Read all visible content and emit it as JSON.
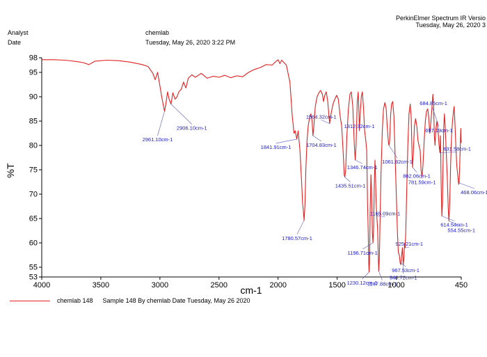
{
  "header": {
    "software_line1": "PerkinElmer Spectrum IR Versio",
    "software_line2": "Tuesday, May 26, 2020 3",
    "analyst_label": "Analyst",
    "analyst_value": "chemlab",
    "date_label": "Date",
    "date_value": "Tuesday, May 26, 2020 3:22 PM"
  },
  "legend": {
    "series_name": "chemlab 148",
    "description": "Sample 148 By chemlab Date Tuesday, May 26 2020"
  },
  "colors": {
    "trace": "#e02020",
    "annotation": "#1a1acc",
    "axis": "#000000"
  },
  "chart_data": {
    "type": "line",
    "title": "",
    "xlabel": "cm-1",
    "ylabel": "%T",
    "xlim": [
      4000,
      450
    ],
    "ylim": [
      53,
      98
    ],
    "x_reversed": true,
    "grid": false,
    "legend_position": "bottom",
    "x_ticks": [
      4000,
      3500,
      3000,
      2500,
      2000,
      1500,
      1000,
      450
    ],
    "x_tick_labels": [
      "4000",
      "3500",
      "3000",
      "2500",
      "2000",
      "1500",
      "1000",
      "450"
    ],
    "y_ticks": [
      53,
      55,
      60,
      65,
      70,
      75,
      80,
      85,
      90,
      95,
      98
    ],
    "y_tick_labels": [
      "53",
      "55",
      "60",
      "65",
      "70",
      "75",
      "80",
      "85",
      "90",
      "95",
      "98"
    ],
    "series": [
      {
        "name": "chemlab 148",
        "points": [
          [
            4000,
            97.6
          ],
          [
            3900,
            97.6
          ],
          [
            3800,
            97.5
          ],
          [
            3700,
            97.2
          ],
          [
            3650,
            97.0
          ],
          [
            3600,
            96.6
          ],
          [
            3550,
            97.3
          ],
          [
            3450,
            97.5
          ],
          [
            3350,
            97.4
          ],
          [
            3250,
            97.1
          ],
          [
            3150,
            96.6
          ],
          [
            3100,
            96.2
          ],
          [
            3060,
            94.8
          ],
          [
            3040,
            93.5
          ],
          [
            3020,
            95.0
          ],
          [
            3000,
            92.2
          ],
          [
            2985,
            90.0
          ],
          [
            2961,
            87.0
          ],
          [
            2950,
            88.5
          ],
          [
            2935,
            91.0
          ],
          [
            2922,
            89.5
          ],
          [
            2906,
            88.5
          ],
          [
            2890,
            90.8
          ],
          [
            2872,
            89.5
          ],
          [
            2855,
            90.0
          ],
          [
            2840,
            91.0
          ],
          [
            2820,
            91.5
          ],
          [
            2800,
            93.0
          ],
          [
            2780,
            91.8
          ],
          [
            2760,
            93.8
          ],
          [
            2730,
            94.5
          ],
          [
            2700,
            94.0
          ],
          [
            2650,
            94.8
          ],
          [
            2600,
            93.8
          ],
          [
            2550,
            94.2
          ],
          [
            2500,
            94.0
          ],
          [
            2450,
            94.4
          ],
          [
            2400,
            93.9
          ],
          [
            2350,
            94.3
          ],
          [
            2300,
            94.1
          ],
          [
            2250,
            95.0
          ],
          [
            2200,
            95.6
          ],
          [
            2150,
            96.0
          ],
          [
            2100,
            96.6
          ],
          [
            2050,
            96.5
          ],
          [
            2020,
            97.2
          ],
          [
            2000,
            97.6
          ],
          [
            1985,
            96.8
          ],
          [
            1970,
            97.5
          ],
          [
            1950,
            97.0
          ],
          [
            1930,
            96.5
          ],
          [
            1900,
            93.0
          ],
          [
            1880,
            86.0
          ],
          [
            1865,
            82.5
          ],
          [
            1855,
            83.0
          ],
          [
            1842,
            81.3
          ],
          [
            1830,
            83.0
          ],
          [
            1815,
            79.0
          ],
          [
            1800,
            72.0
          ],
          [
            1792,
            68.0
          ],
          [
            1786,
            66.5
          ],
          [
            1780,
            64.6
          ],
          [
            1772,
            68.0
          ],
          [
            1765,
            75.0
          ],
          [
            1755,
            81.0
          ],
          [
            1745,
            84.0
          ],
          [
            1735,
            85.5
          ],
          [
            1722,
            86.5
          ],
          [
            1712,
            85.0
          ],
          [
            1705,
            82.0
          ],
          [
            1697,
            84.0
          ],
          [
            1685,
            88.0
          ],
          [
            1670,
            90.0
          ],
          [
            1655,
            90.8
          ],
          [
            1640,
            91.3
          ],
          [
            1625,
            90.5
          ],
          [
            1615,
            89.0
          ],
          [
            1605,
            90.3
          ],
          [
            1592,
            91.0
          ],
          [
            1580,
            89.0
          ],
          [
            1564,
            84.5
          ],
          [
            1548,
            87.0
          ],
          [
            1535,
            88.5
          ],
          [
            1520,
            89.5
          ],
          [
            1505,
            90.3
          ],
          [
            1490,
            89.5
          ],
          [
            1475,
            86.0
          ],
          [
            1462,
            84.0
          ],
          [
            1450,
            79.0
          ],
          [
            1440,
            74.0
          ],
          [
            1435,
            73.5
          ],
          [
            1428,
            75.0
          ],
          [
            1418,
            82.0
          ],
          [
            1405,
            87.5
          ],
          [
            1392,
            90.5
          ],
          [
            1380,
            91.0
          ],
          [
            1368,
            88.0
          ],
          [
            1355,
            80.0
          ],
          [
            1347,
            77.0
          ],
          [
            1340,
            80.0
          ],
          [
            1330,
            89.0
          ],
          [
            1322,
            91.0
          ],
          [
            1316,
            87.0
          ],
          [
            1312,
            83.0
          ],
          [
            1306,
            86.0
          ],
          [
            1296,
            90.0
          ],
          [
            1287,
            91.0
          ],
          [
            1278,
            88.0
          ],
          [
            1268,
            83.0
          ],
          [
            1258,
            81.0
          ],
          [
            1250,
            79.0
          ],
          [
            1243,
            68.0
          ],
          [
            1237,
            62.0
          ],
          [
            1233,
            56.0
          ],
          [
            1230,
            54.0
          ],
          [
            1226,
            56.0
          ],
          [
            1221,
            66.0
          ],
          [
            1214,
            74.0
          ],
          [
            1208,
            70.0
          ],
          [
            1202,
            62.0
          ],
          [
            1197,
            60.0
          ],
          [
            1191,
            63.0
          ],
          [
            1186,
            72.0
          ],
          [
            1180,
            77.0
          ],
          [
            1176,
            74.0
          ],
          [
            1170,
            68.0
          ],
          [
            1165,
            65.5
          ],
          [
            1158,
            63.0
          ],
          [
            1152,
            57.0
          ],
          [
            1148,
            54.2
          ],
          [
            1143,
            57.0
          ],
          [
            1136,
            66.0
          ],
          [
            1128,
            75.0
          ],
          [
            1118,
            83.0
          ],
          [
            1108,
            87.5
          ],
          [
            1096,
            88.8
          ],
          [
            1085,
            87.5
          ],
          [
            1074,
            83.0
          ],
          [
            1066,
            80.5
          ],
          [
            1061,
            80.0
          ],
          [
            1056,
            81.0
          ],
          [
            1048,
            86.0
          ],
          [
            1040,
            88.5
          ],
          [
            1030,
            89.0
          ],
          [
            1020,
            86.0
          ],
          [
            1010,
            78.0
          ],
          [
            1000,
            70.0
          ],
          [
            990,
            62.0
          ],
          [
            982,
            58.0
          ],
          [
            974,
            57.5
          ],
          [
            968,
            56.0
          ],
          [
            962,
            55.5
          ],
          [
            956,
            57.0
          ],
          [
            948,
            59.0
          ],
          [
            941,
            55.5
          ],
          [
            935,
            57.0
          ],
          [
            929,
            60.0
          ],
          [
            925,
            59.0
          ],
          [
            920,
            62.0
          ],
          [
            912,
            70.0
          ],
          [
            902,
            80.0
          ],
          [
            892,
            86.5
          ],
          [
            882,
            88.5
          ],
          [
            874,
            86.0
          ],
          [
            866,
            78.0
          ],
          [
            862,
            75.5
          ],
          [
            856,
            78.0
          ],
          [
            846,
            84.0
          ],
          [
            836,
            85.5
          ],
          [
            826,
            84.0
          ],
          [
            816,
            81.0
          ],
          [
            808,
            80.0
          ],
          [
            798,
            79.0
          ],
          [
            790,
            75.0
          ],
          [
            782,
            73.5
          ],
          [
            774,
            76.0
          ],
          [
            764,
            81.0
          ],
          [
            754,
            85.0
          ],
          [
            744,
            87.0
          ],
          [
            734,
            87.5
          ],
          [
            726,
            86.0
          ],
          [
            716,
            82.5
          ],
          [
            706,
            85.0
          ],
          [
            697,
            88.0
          ],
          [
            690,
            90.5
          ],
          [
            684,
            88.0
          ],
          [
            678,
            82.0
          ],
          [
            672,
            80.0
          ],
          [
            666,
            83.0
          ],
          [
            656,
            85.0
          ],
          [
            646,
            83.0
          ],
          [
            638,
            80.0
          ],
          [
            631,
            78.5
          ],
          [
            626,
            82.0
          ],
          [
            620,
            72.0
          ],
          [
            614,
            65.5
          ],
          [
            609,
            68.0
          ],
          [
            604,
            76.0
          ],
          [
            598,
            84.0
          ],
          [
            592,
            86.5
          ],
          [
            584,
            83.0
          ],
          [
            576,
            78.0
          ],
          [
            568,
            73.0
          ],
          [
            560,
            67.0
          ],
          [
            554,
            64.5
          ],
          [
            548,
            68.0
          ],
          [
            540,
            76.0
          ],
          [
            532,
            82.0
          ],
          [
            524,
            85.0
          ],
          [
            516,
            87.0
          ],
          [
            510,
            88.0
          ],
          [
            504,
            85.0
          ],
          [
            496,
            80.0
          ],
          [
            488,
            76.0
          ],
          [
            480,
            74.0
          ],
          [
            472,
            72.0
          ],
          [
            468,
            72.3
          ],
          [
            463,
            76.0
          ],
          [
            458,
            80.0
          ],
          [
            454,
            83.5
          ],
          [
            452,
            81.0
          ],
          [
            450,
            80.5
          ]
        ]
      }
    ],
    "annotations": [
      {
        "label": "2961.10cm-1",
        "x": 2961.1,
        "y": 87.0
      },
      {
        "label": "2906.10cm-1",
        "x": 2906.1,
        "y": 88.5
      },
      {
        "label": "1841.91cm-1",
        "x": 1841.91,
        "y": 81.3
      },
      {
        "label": "1780.57cm-1",
        "x": 1780.57,
        "y": 64.6
      },
      {
        "label": "1704.83cm-1",
        "x": 1704.83,
        "y": 82.0
      },
      {
        "label": "1564.32cm-1",
        "x": 1564.32,
        "y": 84.5
      },
      {
        "label": "1435.51cm-1",
        "x": 1435.51,
        "y": 73.5
      },
      {
        "label": "1346.74cm-1",
        "x": 1346.74,
        "y": 77.0
      },
      {
        "label": "1312.32cm-1",
        "x": 1312.32,
        "y": 83.0
      },
      {
        "label": "1230.12cm-1",
        "x": 1230.12,
        "y": 54.0
      },
      {
        "label": "1196.71cm-1",
        "x": 1196.71,
        "y": 60.0
      },
      {
        "label": "1165.09cm-1",
        "x": 1165.09,
        "y": 65.5
      },
      {
        "label": "1147.88cm-1",
        "x": 1147.88,
        "y": 54.2
      },
      {
        "label": "1061.82cm-1",
        "x": 1061.82,
        "y": 80.0
      },
      {
        "label": "967.53cm-1",
        "x": 967.53,
        "y": 56.0
      },
      {
        "label": "940.72cm-1",
        "x": 940.72,
        "y": 55.5
      },
      {
        "label": "925.21cm-1",
        "x": 925.21,
        "y": 59.0
      },
      {
        "label": "862.06cm-1",
        "x": 862.06,
        "y": 75.5
      },
      {
        "label": "781.59cm-1",
        "x": 781.59,
        "y": 73.5
      },
      {
        "label": "697.19cm-1",
        "x": 697.19,
        "y": 88.0
      },
      {
        "label": "684.85cm-1",
        "x": 684.85,
        "y": 88.0
      },
      {
        "label": "631.58cm-1",
        "x": 631.58,
        "y": 78.5
      },
      {
        "label": "614.54cm-1",
        "x": 614.54,
        "y": 65.5
      },
      {
        "label": "554.55cm-1",
        "x": 554.55,
        "y": 64.5
      },
      {
        "label": "468.06cm-1",
        "x": 468.06,
        "y": 72.3
      }
    ]
  }
}
